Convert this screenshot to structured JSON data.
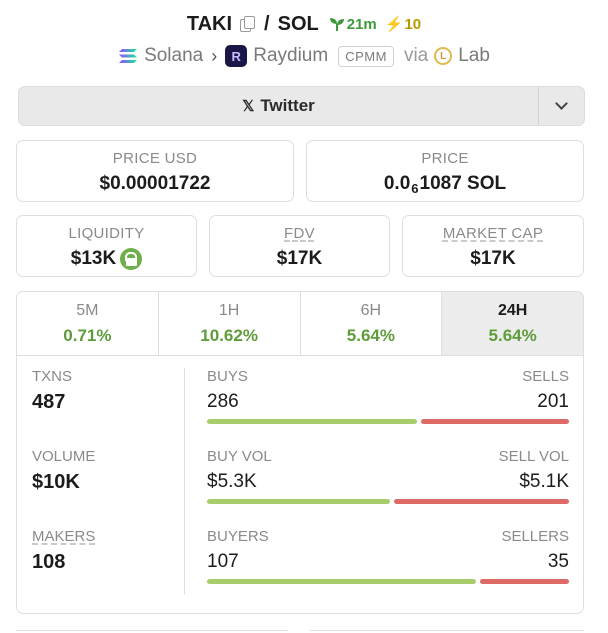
{
  "header": {
    "ticker": "TAKI",
    "separator": "/",
    "quote": "SOL",
    "age": "21m",
    "boosts": "10",
    "chain": "Solana",
    "dex": "Raydium",
    "pool_type": "CPMM",
    "via_label": "via",
    "launchpad": "Lab"
  },
  "twitter": {
    "label": "Twitter"
  },
  "prices": {
    "usd_label": "PRICE USD",
    "usd_value": "$0.00001722",
    "native_label": "PRICE",
    "native_prefix": "0.0",
    "native_zeros": "6",
    "native_rest": "1087 SOL"
  },
  "metrics": {
    "liquidity_label": "LIQUIDITY",
    "liquidity_value": "$13K",
    "fdv_label": "FDV",
    "fdv_value": "$17K",
    "mcap_label": "MARKET CAP",
    "mcap_value": "$17K"
  },
  "tabs": [
    {
      "label": "5M",
      "change": "0.71%"
    },
    {
      "label": "1H",
      "change": "10.62%"
    },
    {
      "label": "6H",
      "change": "5.64%"
    },
    {
      "label": "24H",
      "change": "5.64%",
      "active": true
    }
  ],
  "stats": {
    "txns_label": "TXNS",
    "txns_value": "487",
    "volume_label": "VOLUME",
    "volume_value": "$10K",
    "makers_label": "MAKERS",
    "makers_value": "108",
    "buys_label": "BUYS",
    "buys_value": "286",
    "sells_label": "SELLS",
    "sells_value": "201",
    "buyvol_label": "BUY VOL",
    "buyvol_value": "$5.3K",
    "sellvol_label": "SELL VOL",
    "sellvol_value": "$5.1K",
    "buyers_label": "BUYERS",
    "buyers_value": "107",
    "sellers_label": "SELLERS",
    "sellers_value": "35",
    "buys_share": 0.587,
    "buyvol_share": 0.51,
    "buyers_share": 0.75
  },
  "colors": {
    "positive": "#5e9b3a",
    "buy_bar": "#a8cc6b",
    "sell_bar": "#de6a66",
    "age": "#3d9a3b"
  }
}
